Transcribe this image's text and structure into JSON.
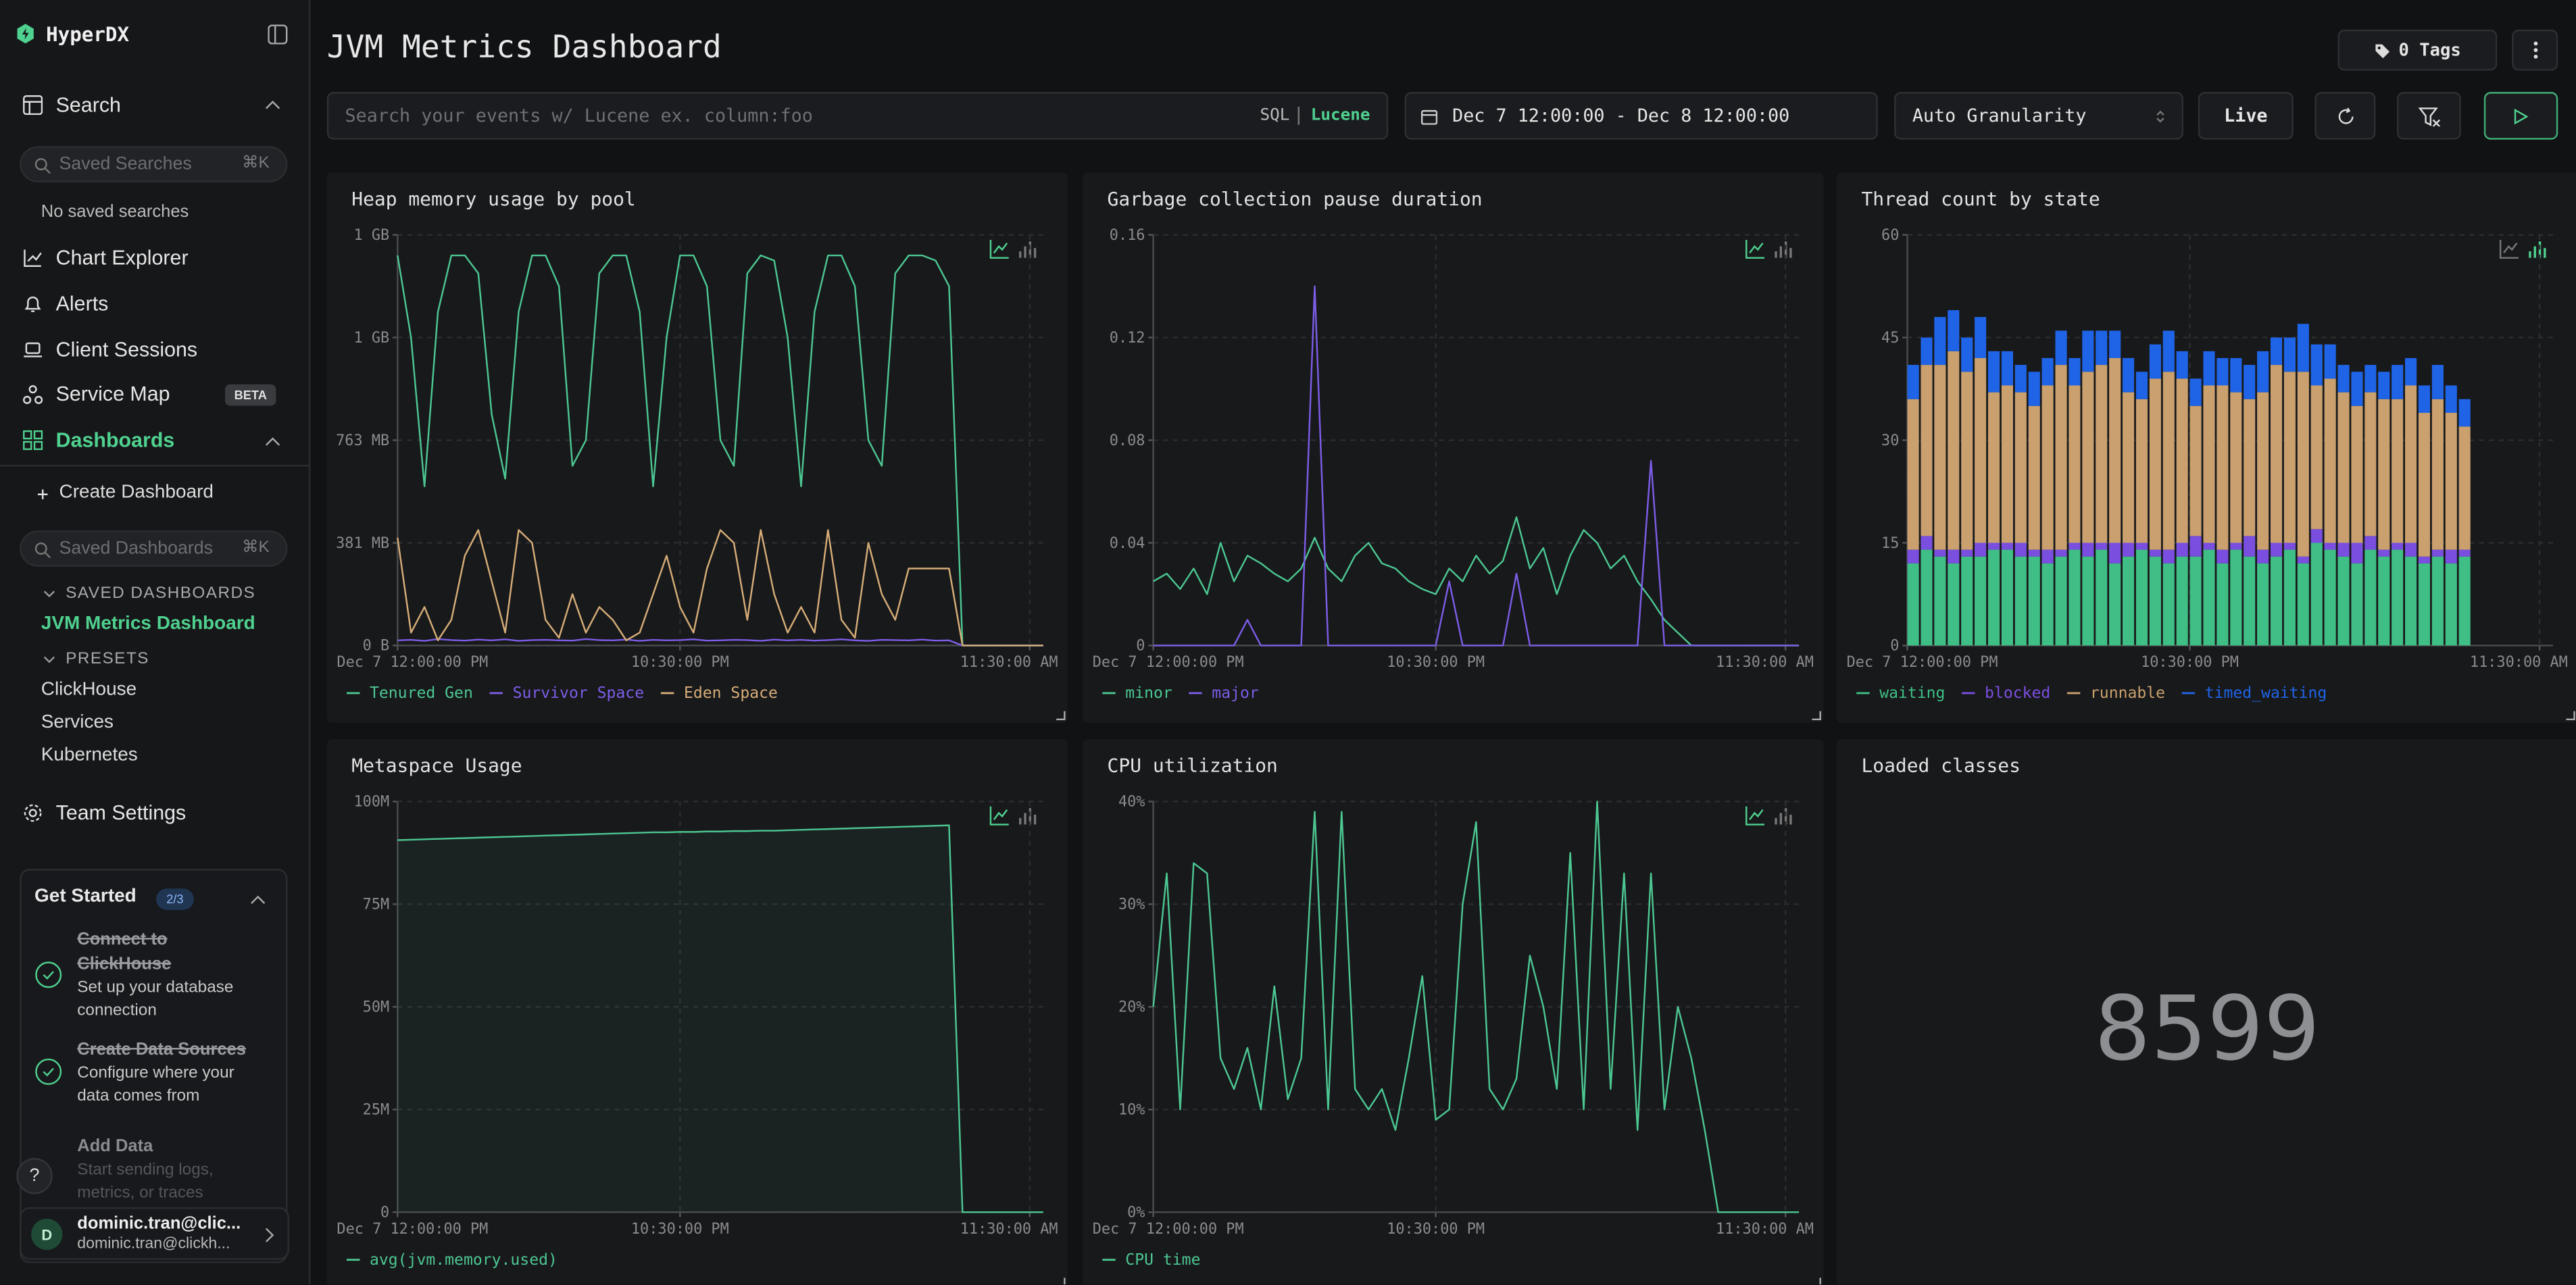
{
  "sidebar": {
    "brand": "HyperDX",
    "search": {
      "label": "Search",
      "placeholder": "Saved Searches",
      "shortcut": "⌘K",
      "empty": "No saved searches"
    },
    "nav": [
      "Chart Explorer",
      "Alerts",
      "Client Sessions",
      "Service Map"
    ],
    "beta": "BETA",
    "dashboards": {
      "label": "Dashboards",
      "create": "Create Dashboard",
      "placeholder": "Saved Dashboards",
      "shortcut": "⌘K",
      "saved_heading": "SAVED DASHBOARDS",
      "saved": [
        "JVM Metrics Dashboard"
      ],
      "presets_heading": "PRESETS",
      "presets": [
        "ClickHouse",
        "Services",
        "Kubernetes"
      ]
    },
    "team_settings": "Team Settings",
    "get_started": {
      "title": "Get Started",
      "progress": "2/3",
      "steps": [
        {
          "title": "Connect to ClickHouse",
          "description": "Set up your database connection"
        },
        {
          "title": "Create Data Sources",
          "description": "Configure where your data comes from"
        },
        {
          "title": "Add Data",
          "description": "Start sending logs, metrics, or traces"
        }
      ]
    },
    "help": "?",
    "user": {
      "initial": "D",
      "name": "dominic.tran@clic...",
      "email": "dominic.tran@clickh..."
    }
  },
  "header": {
    "title": "JVM Metrics Dashboard",
    "tags": "0 Tags",
    "search_placeholder": "Search your events w/ Lucene ex. column:foo",
    "query_modes": [
      "SQL",
      "Lucene"
    ],
    "date_range": "Dec 7 12:00:00 - Dec 8 12:00:00",
    "granularity": "Auto Granularity",
    "live": "Live"
  },
  "chart_data": [
    {
      "type": "line",
      "title": "Heap memory usage by pool",
      "x": [
        0,
        0.5,
        1,
        1.5,
        2,
        2.5,
        3,
        3.5,
        4,
        4.5,
        5,
        5.5,
        6,
        6.5,
        7,
        7.5,
        8,
        8.5,
        9,
        9.5,
        10,
        10.5,
        11,
        11.5,
        12,
        12.5,
        13,
        13.5,
        14,
        14.5,
        15,
        15.5,
        16,
        16.5,
        17,
        17.5,
        18,
        18.5,
        19,
        19.5,
        20,
        20.5,
        21,
        21.5,
        22,
        22.5,
        23,
        23.5,
        24
      ],
      "xlim": [
        0,
        24
      ],
      "xticks": [
        {
          "value": 0,
          "label": "Dec 7 12:00:00 PM"
        },
        {
          "value": 10.5,
          "label": "10:30:00 PM"
        },
        {
          "value": 23.5,
          "label": "11:30:00 AM"
        }
      ],
      "ylim": [
        0,
        1600000000
      ],
      "yticks": [
        {
          "value": 0,
          "label": "0 B"
        },
        {
          "value": 400000000,
          "label": "381 MB"
        },
        {
          "value": 800000000,
          "label": "763 MB"
        },
        {
          "value": 1200000000,
          "label": "1 GB"
        },
        {
          "value": 1600000000,
          "label": "1 GB"
        }
      ],
      "grid": true,
      "series": [
        {
          "name": "Tenured Gen",
          "color": "#4cc792",
          "values": [
            1520000000,
            1200000000,
            620000000,
            1300000000,
            1520000000,
            1520000000,
            1450000000,
            900000000,
            650000000,
            1300000000,
            1520000000,
            1520000000,
            1400000000,
            700000000,
            800000000,
            1450000000,
            1520000000,
            1520000000,
            1300000000,
            620000000,
            1200000000,
            1520000000,
            1520000000,
            1400000000,
            800000000,
            700000000,
            1450000000,
            1520000000,
            1500000000,
            1200000000,
            620000000,
            1300000000,
            1520000000,
            1520000000,
            1400000000,
            800000000,
            700000000,
            1450000000,
            1520000000,
            1520000000,
            1500000000,
            1400000000,
            0,
            0,
            0,
            0,
            0,
            0,
            0
          ]
        },
        {
          "name": "Survivor Space",
          "color": "#7c5de6",
          "values": [
            20000000,
            22000000,
            18000000,
            25000000,
            21000000,
            19000000,
            23000000,
            20000000,
            24000000,
            18000000,
            21000000,
            22000000,
            20000000,
            19000000,
            25000000,
            21000000,
            20000000,
            23000000,
            18000000,
            22000000,
            20000000,
            21000000,
            24000000,
            19000000,
            20000000,
            22000000,
            21000000,
            18000000,
            23000000,
            20000000,
            22000000,
            19000000,
            21000000,
            24000000,
            20000000,
            18000000,
            22000000,
            21000000,
            20000000,
            23000000,
            19000000,
            20000000,
            0,
            0,
            0,
            0,
            0,
            0,
            0
          ]
        },
        {
          "name": "Eden Space",
          "color": "#d6ad78",
          "values": [
            420000000,
            50000000,
            150000000,
            20000000,
            100000000,
            350000000,
            450000000,
            250000000,
            50000000,
            450000000,
            400000000,
            100000000,
            30000000,
            200000000,
            50000000,
            150000000,
            100000000,
            20000000,
            50000000,
            200000000,
            350000000,
            150000000,
            50000000,
            300000000,
            450000000,
            400000000,
            100000000,
            450000000,
            200000000,
            50000000,
            150000000,
            50000000,
            450000000,
            100000000,
            30000000,
            400000000,
            200000000,
            100000000,
            300000000,
            300000000,
            300000000,
            300000000,
            0,
            0,
            0,
            0,
            0,
            0,
            0
          ]
        }
      ]
    },
    {
      "type": "line",
      "title": "Garbage collection pause duration",
      "x": [
        0,
        0.5,
        1,
        1.5,
        2,
        2.5,
        3,
        3.5,
        4,
        4.5,
        5,
        5.5,
        6,
        6.5,
        7,
        7.5,
        8,
        8.5,
        9,
        9.5,
        10,
        10.5,
        11,
        11.5,
        12,
        12.5,
        13,
        13.5,
        14,
        14.5,
        15,
        15.5,
        16,
        16.5,
        17,
        17.5,
        18,
        18.5,
        19,
        19.5,
        20,
        20.5,
        21,
        21.5,
        22,
        22.5,
        23,
        23.5,
        24
      ],
      "xlim": [
        0,
        24
      ],
      "xticks": [
        {
          "value": 0,
          "label": "Dec 7 12:00:00 PM"
        },
        {
          "value": 10.5,
          "label": "10:30:00 PM"
        },
        {
          "value": 23.5,
          "label": "11:30:00 AM"
        }
      ],
      "ylim": [
        0,
        0.16
      ],
      "yticks": [
        0,
        0.04,
        0.08,
        0.12,
        0.16
      ],
      "grid": true,
      "series": [
        {
          "name": "minor",
          "color": "#4cc792",
          "values": [
            0.025,
            0.028,
            0.022,
            0.03,
            0.02,
            0.04,
            0.025,
            0.035,
            0.032,
            0.028,
            0.025,
            0.03,
            0.042,
            0.03,
            0.025,
            0.035,
            0.04,
            0.032,
            0.03,
            0.025,
            0.022,
            0.02,
            0.03,
            0.025,
            0.035,
            0.028,
            0.033,
            0.05,
            0.03,
            0.038,
            0.02,
            0.035,
            0.045,
            0.04,
            0.03,
            0.035,
            0.025,
            0.018,
            0.01,
            0.005,
            0,
            0,
            0,
            0,
            0,
            0,
            0,
            0,
            0
          ]
        },
        {
          "name": "major",
          "color": "#7c5de6",
          "values": [
            0,
            0,
            0,
            0,
            0,
            0,
            0,
            0.01,
            0,
            0,
            0,
            0,
            0.14,
            0,
            0,
            0,
            0,
            0,
            0,
            0,
            0,
            0,
            0.025,
            0,
            0,
            0,
            0,
            0.028,
            0,
            0,
            0,
            0,
            0,
            0,
            0,
            0,
            0,
            0.072,
            0,
            0,
            0,
            0,
            0,
            0,
            0,
            0,
            0,
            0,
            0
          ]
        }
      ]
    },
    {
      "type": "stacked_bar",
      "title": "Thread count by state",
      "x": [
        0,
        0.5,
        1,
        1.5,
        2,
        2.5,
        3,
        3.5,
        4,
        4.5,
        5,
        5.5,
        6,
        6.5,
        7,
        7.5,
        8,
        8.5,
        9,
        9.5,
        10,
        10.5,
        11,
        11.5,
        12,
        12.5,
        13,
        13.5,
        14,
        14.5,
        15,
        15.5,
        16,
        16.5,
        17,
        17.5,
        18,
        18.5,
        19,
        19.5,
        20,
        20.5
      ],
      "xlim": [
        0,
        24
      ],
      "xticks": [
        {
          "value": 0,
          "label": "Dec 7 12:00:00 PM"
        },
        {
          "value": 10.5,
          "label": "10:30:00 PM"
        },
        {
          "value": 23.5,
          "label": "11:30:00 AM"
        }
      ],
      "ylim": [
        0,
        60
      ],
      "yticks": [
        0,
        15,
        30,
        45,
        60
      ],
      "grid": true,
      "series": [
        {
          "name": "waiting",
          "color": "#3fbf86",
          "values": [
            12,
            14,
            13,
            12,
            13,
            13,
            14,
            14,
            13,
            13,
            12,
            13,
            14,
            13,
            14,
            12,
            13,
            14,
            13,
            12,
            13,
            13,
            14,
            12,
            14,
            13,
            12,
            13,
            14,
            12,
            15,
            14,
            13,
            12,
            14,
            13,
            14,
            13,
            12,
            13,
            12,
            13
          ]
        },
        {
          "name": "blocked",
          "color": "#7a4fe0",
          "values": [
            2,
            2,
            1,
            2,
            1,
            2,
            1,
            1,
            2,
            1,
            2,
            1,
            1,
            2,
            1,
            3,
            2,
            1,
            1,
            2,
            2,
            3,
            1,
            2,
            1,
            3,
            2,
            2,
            1,
            1,
            2,
            1,
            2,
            3,
            2,
            1,
            1,
            2,
            1,
            1,
            2,
            1
          ]
        },
        {
          "name": "runnable",
          "color": "#c9a06e",
          "values": [
            22,
            25,
            27,
            29,
            26,
            27,
            22,
            23,
            22,
            21,
            24,
            27,
            23,
            25,
            26,
            27,
            22,
            21,
            25,
            26,
            24,
            19,
            23,
            24,
            22,
            20,
            23,
            26,
            25,
            27,
            21,
            24,
            22,
            20,
            21,
            22,
            21,
            23,
            21,
            22,
            20,
            18
          ]
        },
        {
          "name": "timed_waiting",
          "color": "#1f64e6",
          "values": [
            5,
            4,
            7,
            6,
            5,
            6,
            6,
            5,
            4,
            5,
            4,
            5,
            4,
            6,
            5,
            4,
            5,
            4,
            5,
            6,
            4,
            4,
            5,
            4,
            5,
            5,
            6,
            4,
            5,
            7,
            6,
            5,
            4,
            5,
            4,
            4,
            5,
            4,
            4,
            5,
            4,
            4
          ]
        }
      ]
    },
    {
      "type": "area",
      "title": "Metaspace Usage",
      "x": [
        0,
        0.5,
        1,
        1.5,
        2,
        2.5,
        3,
        3.5,
        4,
        4.5,
        5,
        5.5,
        6,
        6.5,
        7,
        7.5,
        8,
        8.5,
        9,
        9.5,
        10,
        10.5,
        11,
        11.5,
        12,
        12.5,
        13,
        13.5,
        14,
        14.5,
        15,
        15.5,
        16,
        16.5,
        17,
        17.5,
        18,
        18.5,
        19,
        19.5,
        20,
        20.5,
        21,
        21.5,
        22,
        22.5,
        23,
        23.5,
        24
      ],
      "xlim": [
        0,
        24
      ],
      "xticks": [
        {
          "value": 0,
          "label": "Dec 7 12:00:00 PM"
        },
        {
          "value": 10.5,
          "label": "10:30:00 PM"
        },
        {
          "value": 23.5,
          "label": "11:30:00 AM"
        }
      ],
      "ylim": [
        0,
        100000000
      ],
      "yticks": [
        0,
        {
          "value": 25000000,
          "label": "25M"
        },
        {
          "value": 50000000,
          "label": "50M"
        },
        {
          "value": 75000000,
          "label": "75M"
        },
        {
          "value": 100000000,
          "label": "100M"
        }
      ],
      "grid": true,
      "series": [
        {
          "name": "avg(jvm.memory.used)",
          "color": "#4cc792",
          "values": [
            90600000,
            90700000,
            90800000,
            90900000,
            91000000,
            91100000,
            91200000,
            91300000,
            91400000,
            91500000,
            91600000,
            91700000,
            91800000,
            91900000,
            92000000,
            92100000,
            92200000,
            92300000,
            92400000,
            92500000,
            92500000,
            92600000,
            92600000,
            92700000,
            92700000,
            92800000,
            92800000,
            92900000,
            92900000,
            93000000,
            93100000,
            93200000,
            93300000,
            93400000,
            93500000,
            93600000,
            93700000,
            93800000,
            93900000,
            94000000,
            94100000,
            94200000,
            0,
            0,
            0,
            0,
            0,
            0,
            0
          ]
        }
      ]
    },
    {
      "type": "line",
      "title": "CPU utilization",
      "x": [
        0,
        0.5,
        1,
        1.5,
        2,
        2.5,
        3,
        3.5,
        4,
        4.5,
        5,
        5.5,
        6,
        6.5,
        7,
        7.5,
        8,
        8.5,
        9,
        9.5,
        10,
        10.5,
        11,
        11.5,
        12,
        12.5,
        13,
        13.5,
        14,
        14.5,
        15,
        15.5,
        16,
        16.5,
        17,
        17.5,
        18,
        18.5,
        19,
        19.5,
        20,
        20.5,
        21,
        21.5,
        22,
        22.5,
        23,
        23.5,
        24
      ],
      "xlim": [
        0,
        24
      ],
      "xticks": [
        {
          "value": 0,
          "label": "Dec 7 12:00:00 PM"
        },
        {
          "value": 10.5,
          "label": "10:30:00 PM"
        },
        {
          "value": 23.5,
          "label": "11:30:00 AM"
        }
      ],
      "ylim": [
        0,
        40
      ],
      "yticks": [
        {
          "value": 0,
          "label": "0%"
        },
        {
          "value": 10,
          "label": "10%"
        },
        {
          "value": 20,
          "label": "20%"
        },
        {
          "value": 30,
          "label": "30%"
        },
        {
          "value": 40,
          "label": "40%"
        }
      ],
      "grid": true,
      "series": [
        {
          "name": "CPU time",
          "color": "#4cc792",
          "values": [
            20,
            33,
            10,
            34,
            33,
            15,
            12,
            16,
            10,
            22,
            11,
            15,
            39,
            10,
            39,
            12,
            10,
            12,
            8,
            15,
            23,
            9,
            10,
            30,
            38,
            12,
            10,
            13,
            25,
            20,
            12,
            35,
            10,
            40,
            12,
            33,
            8,
            33,
            10,
            20,
            15,
            8,
            0,
            0,
            0,
            0,
            0,
            0,
            0
          ]
        }
      ]
    },
    {
      "type": "number",
      "title": "Loaded classes",
      "value": 8599
    }
  ]
}
